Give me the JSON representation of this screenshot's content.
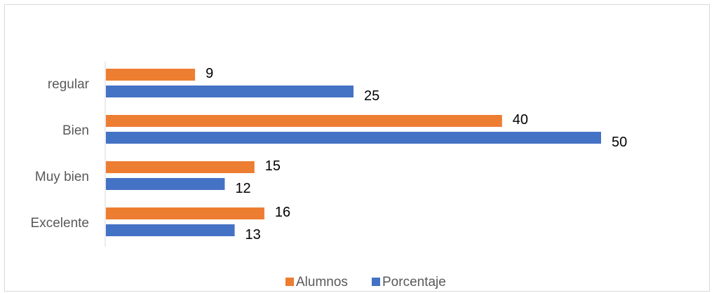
{
  "chart_data": {
    "type": "bar",
    "orientation": "horizontal",
    "categories": [
      "regular",
      "Bien",
      "Muy bien",
      "Excelente"
    ],
    "series": [
      {
        "name": "Alumnos",
        "values": [
          9,
          40,
          15,
          16
        ],
        "color": "#ED7D31"
      },
      {
        "name": "Porcentaje",
        "values": [
          25,
          50,
          12,
          13
        ],
        "color": "#4472C4"
      }
    ],
    "title": "",
    "xlabel": "",
    "ylabel": "",
    "xlim": [
      0,
      50
    ],
    "grid": false,
    "legend": "bottom",
    "data_labels": true
  }
}
